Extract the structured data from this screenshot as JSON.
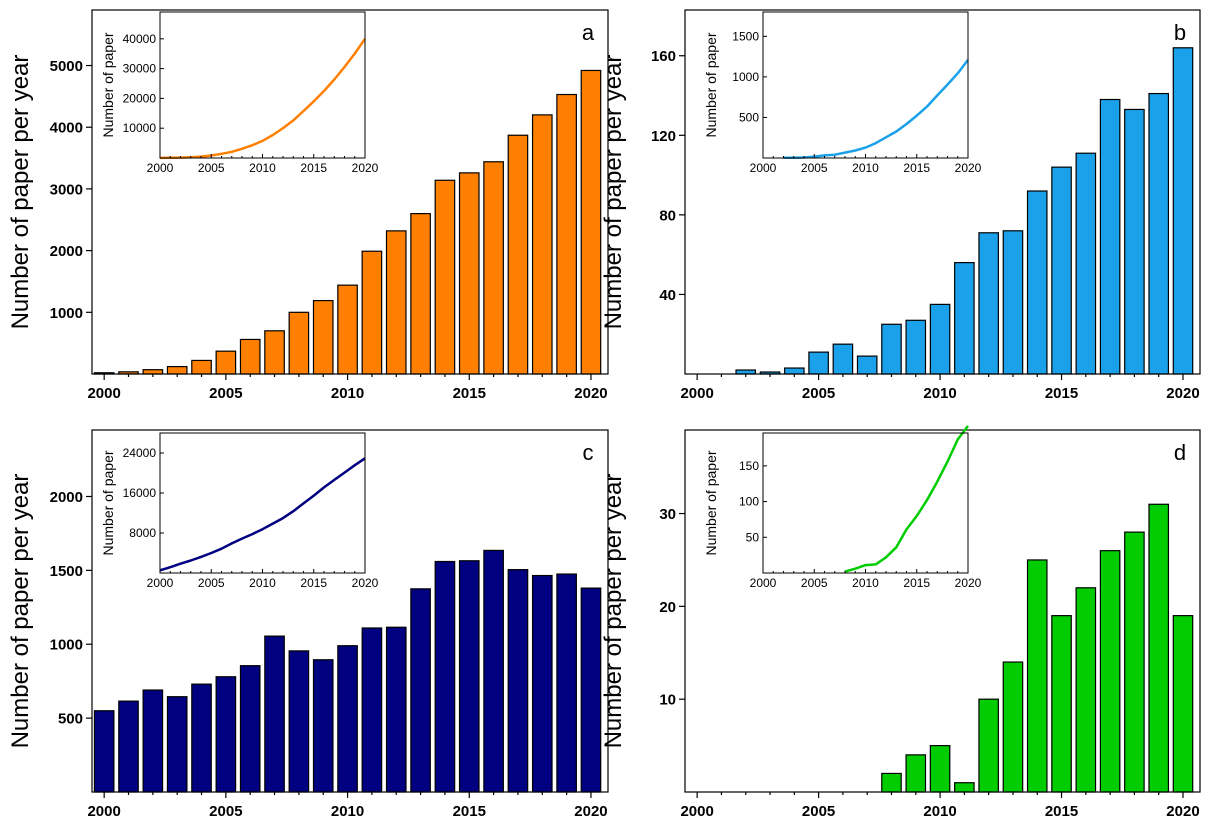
{
  "chart_data": [
    {
      "type": "bar",
      "panel_label": "a",
      "ylabel": "Number of paper per year",
      "xlabel": "",
      "bar_color": "#ff8000",
      "x": [
        2000,
        2001,
        2002,
        2003,
        2004,
        2005,
        2006,
        2007,
        2008,
        2009,
        2010,
        2011,
        2012,
        2013,
        2014,
        2015,
        2016,
        2017,
        2018,
        2019,
        2020
      ],
      "values": [
        20,
        35,
        70,
        120,
        220,
        370,
        560,
        700,
        1000,
        1190,
        1440,
        1990,
        2320,
        2600,
        3140,
        3260,
        3440,
        3870,
        4200,
        4530,
        4920
      ],
      "xlim": [
        1999.5,
        2020.7
      ],
      "ylim": [
        0,
        5900
      ],
      "xticks": [
        "2000",
        "2005",
        "2010",
        "2015",
        "2020"
      ],
      "yticks": [
        "1000",
        "2000",
        "3000",
        "4000",
        "5000"
      ],
      "inset": {
        "type": "line",
        "ylabel": "Number of paper",
        "color": "#ff8000",
        "x": [
          2000,
          2001,
          2002,
          2003,
          2004,
          2005,
          2006,
          2007,
          2008,
          2009,
          2010,
          2011,
          2012,
          2013,
          2014,
          2015,
          2016,
          2017,
          2018,
          2019,
          2020
        ],
        "y": [
          20,
          55,
          125,
          245,
          465,
          835,
          1395,
          2095,
          3095,
          4285,
          5725,
          7715,
          10035,
          12635,
          15775,
          19035,
          22475,
          26345,
          30545,
          35075,
          39995
        ],
        "xlim": [
          2000,
          2020
        ],
        "ylim": [
          0,
          49000
        ],
        "xticks": [
          "2000",
          "2005",
          "2010",
          "2015",
          "2020"
        ],
        "yticks": [
          "10000",
          "20000",
          "30000",
          "40000"
        ]
      }
    },
    {
      "type": "bar",
      "panel_label": "b",
      "ylabel": "Number of paper per year",
      "xlabel": "",
      "bar_color": "#1ba1ea",
      "x": [
        2002,
        2003,
        2004,
        2005,
        2006,
        2007,
        2008,
        2009,
        2010,
        2011,
        2012,
        2013,
        2014,
        2015,
        2016,
        2017,
        2018,
        2019,
        2020
      ],
      "values": [
        2,
        1,
        3,
        11,
        15,
        9,
        25,
        27,
        35,
        56,
        71,
        72,
        92,
        104,
        111,
        138,
        133,
        141,
        164
      ],
      "xlim": [
        1999.5,
        2020.7
      ],
      "ylim": [
        0,
        183
      ],
      "xticks": [
        "2000",
        "2005",
        "2010",
        "2015",
        "2020"
      ],
      "yticks": [
        "40",
        "80",
        "120",
        "160"
      ],
      "inset": {
        "type": "line",
        "ylabel": "Number of paper",
        "color": "#1ba1ea",
        "x": [
          2002,
          2003,
          2004,
          2005,
          2006,
          2007,
          2008,
          2009,
          2010,
          2011,
          2012,
          2013,
          2014,
          2015,
          2016,
          2017,
          2018,
          2019,
          2020
        ],
        "y": [
          2,
          3,
          6,
          17,
          32,
          41,
          66,
          93,
          128,
          184,
          255,
          327,
          419,
          523,
          634,
          772,
          905,
          1046,
          1210
        ],
        "xlim": [
          2000,
          2020
        ],
        "ylim": [
          0,
          1800
        ],
        "xticks": [
          "2000",
          "2005",
          "2010",
          "2015",
          "2020"
        ],
        "yticks": [
          "500",
          "1000",
          "1500"
        ]
      }
    },
    {
      "type": "bar",
      "panel_label": "c",
      "ylabel": "Number of paper per year",
      "xlabel": "",
      "bar_color": "#000080",
      "x": [
        2000,
        2001,
        2002,
        2003,
        2004,
        2005,
        2006,
        2007,
        2008,
        2009,
        2010,
        2011,
        2012,
        2013,
        2014,
        2015,
        2016,
        2017,
        2018,
        2019,
        2020
      ],
      "values": [
        550,
        615,
        690,
        645,
        730,
        780,
        855,
        1055,
        955,
        895,
        990,
        1110,
        1115,
        1375,
        1560,
        1565,
        1635,
        1505,
        1465,
        1475,
        1380
      ],
      "xlim": [
        1999.5,
        2020.7
      ],
      "ylim": [
        0,
        2450
      ],
      "xticks": [
        "2000",
        "2005",
        "2010",
        "2015",
        "2020"
      ],
      "yticks": [
        "500",
        "1000",
        "1500",
        "2000"
      ],
      "inset": {
        "type": "line",
        "ylabel": "Number of paper",
        "color": "#000080",
        "x": [
          2000,
          2001,
          2002,
          2003,
          2004,
          2005,
          2006,
          2007,
          2008,
          2009,
          2010,
          2011,
          2012,
          2013,
          2014,
          2015,
          2016,
          2017,
          2018,
          2019,
          2020
        ],
        "y": [
          550,
          1165,
          1855,
          2500,
          3230,
          4010,
          4865,
          5920,
          6875,
          7770,
          8760,
          9870,
          10985,
          12360,
          13920,
          15485,
          17120,
          18625,
          20090,
          21565,
          22945
        ],
        "xlim": [
          2000,
          2020
        ],
        "ylim": [
          0,
          28000
        ],
        "xticks": [
          "2000",
          "2005",
          "2010",
          "2015",
          "2020"
        ],
        "yticks": [
          "8000",
          "16000",
          "24000"
        ]
      }
    },
    {
      "type": "bar",
      "panel_label": "d",
      "ylabel": "Number of paper per year",
      "xlabel": "",
      "bar_color": "#00cc00",
      "x": [
        2008,
        2009,
        2010,
        2011,
        2012,
        2013,
        2014,
        2015,
        2016,
        2017,
        2018,
        2019,
        2020
      ],
      "values": [
        2,
        4,
        5,
        1,
        10,
        14,
        25,
        19,
        22,
        26,
        28,
        31,
        19
      ],
      "xlim": [
        1999.5,
        2020.7
      ],
      "ylim": [
        0,
        39
      ],
      "xticks": [
        "2000",
        "2005",
        "2010",
        "2015",
        "2020"
      ],
      "yticks": [
        "10",
        "20",
        "30"
      ],
      "inset": {
        "type": "line",
        "ylabel": "Number of paper",
        "color": "#00cc00",
        "x": [
          2008,
          2009,
          2010,
          2011,
          2012,
          2013,
          2014,
          2015,
          2016,
          2017,
          2018,
          2019,
          2020
        ],
        "y": [
          2,
          6,
          11,
          12,
          22,
          36,
          61,
          80,
          102,
          128,
          156,
          187,
          206
        ],
        "xlim": [
          2000,
          2020
        ],
        "ylim": [
          0,
          196
        ],
        "xticks": [
          "2000",
          "2005",
          "2010",
          "2015",
          "2020"
        ],
        "yticks": [
          "50",
          "100",
          "150"
        ]
      }
    }
  ]
}
